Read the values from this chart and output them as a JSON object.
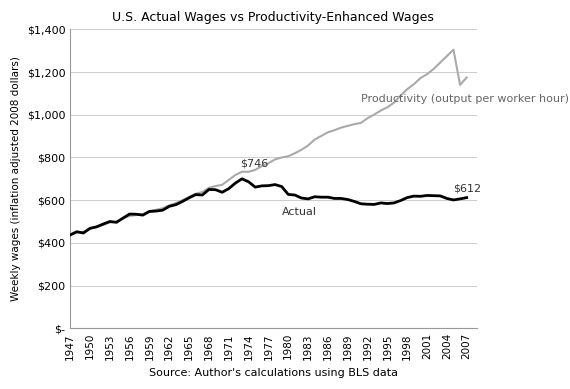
{
  "title": "U.S. Actual Wages vs Productivity-Enhanced Wages",
  "xlabel": "Source: Author's calculations using BLS data",
  "ylabel": "Weekly wages (inflation adjusted 2008 dollars)",
  "years": [
    1947,
    1948,
    1949,
    1950,
    1951,
    1952,
    1953,
    1954,
    1955,
    1956,
    1957,
    1958,
    1959,
    1960,
    1961,
    1962,
    1963,
    1964,
    1965,
    1966,
    1967,
    1968,
    1969,
    1970,
    1971,
    1972,
    1973,
    1974,
    1975,
    1976,
    1977,
    1978,
    1979,
    1980,
    1981,
    1982,
    1983,
    1984,
    1985,
    1986,
    1987,
    1988,
    1989,
    1990,
    1991,
    1992,
    1993,
    1994,
    1995,
    1996,
    1997,
    1998,
    1999,
    2000,
    2001,
    2002,
    2003,
    2004,
    2005,
    2006,
    2007
  ],
  "actual": [
    437,
    452,
    446,
    468,
    475,
    488,
    500,
    496,
    516,
    535,
    534,
    530,
    547,
    549,
    553,
    571,
    579,
    594,
    611,
    626,
    624,
    650,
    649,
    637,
    654,
    680,
    700,
    686,
    661,
    667,
    668,
    673,
    664,
    627,
    624,
    610,
    606,
    616,
    614,
    614,
    608,
    608,
    603,
    594,
    583,
    581,
    580,
    587,
    584,
    587,
    598,
    612,
    619,
    618,
    622,
    621,
    620,
    608,
    601,
    606,
    612
  ],
  "productivity": [
    437,
    448,
    452,
    465,
    474,
    484,
    496,
    499,
    514,
    526,
    530,
    534,
    549,
    555,
    562,
    576,
    586,
    600,
    615,
    630,
    638,
    658,
    666,
    672,
    695,
    718,
    733,
    733,
    742,
    760,
    773,
    791,
    800,
    806,
    820,
    836,
    856,
    884,
    901,
    918,
    928,
    940,
    948,
    956,
    962,
    984,
    1001,
    1020,
    1035,
    1057,
    1090,
    1120,
    1143,
    1172,
    1190,
    1215,
    1245,
    1275,
    1305,
    1140,
    1175
  ],
  "actual_color": "#000000",
  "productivity_color": "#aaaaaa",
  "actual_linewidth": 2.0,
  "productivity_linewidth": 1.5,
  "ylim": [
    0,
    1400
  ],
  "yticks": [
    0,
    200,
    400,
    600,
    800,
    1000,
    1200,
    1400
  ],
  "ytick_labels": [
    "$-",
    "$200",
    "$400",
    "$600",
    "$800",
    "$1,000",
    "$1,200",
    "$1,400"
  ],
  "xtick_years": [
    1947,
    1950,
    1953,
    1956,
    1959,
    1962,
    1965,
    1968,
    1971,
    1974,
    1977,
    1980,
    1983,
    1986,
    1989,
    1992,
    1995,
    1998,
    2001,
    2004,
    2007
  ],
  "background_color": "#ffffff",
  "grid_color": "#cccccc",
  "ann_746_x": 1973,
  "ann_746_y": 746,
  "ann_612_x": 2005,
  "ann_612_y": 640,
  "ann_actual_x": 1979,
  "ann_actual_y": 530,
  "ann_prod_x": 1991,
  "ann_prod_y": 1060
}
